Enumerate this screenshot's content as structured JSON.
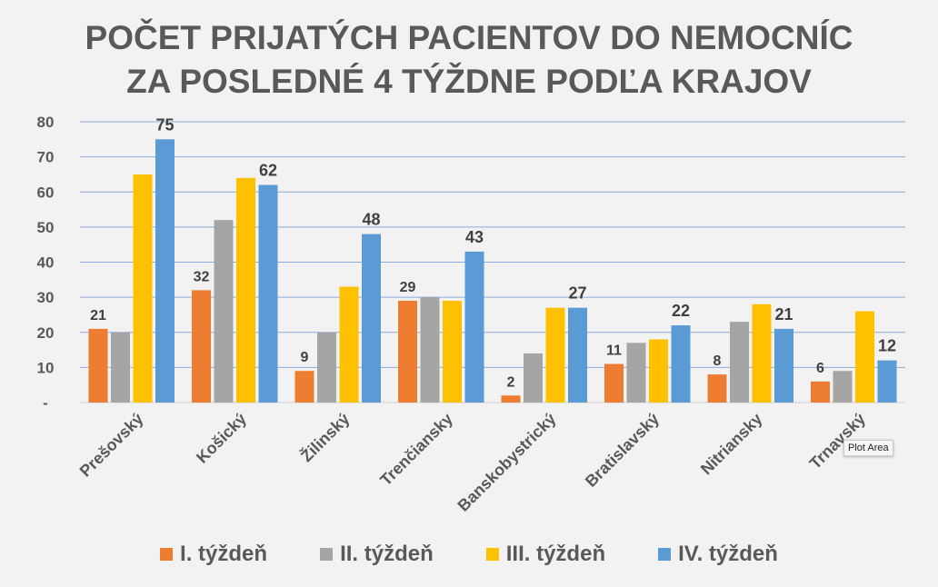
{
  "chart_data": {
    "type": "bar",
    "title_line1": "POČET PRIJATÝCH PACIENTOV DO NEMOCNÍC",
    "title_line2": "ZA POSLEDNÉ 4 TÝŽDNE PODĽA KRAJOV",
    "categories": [
      "Prešovský",
      "Košický",
      "Žilinský",
      "Trenčiansky",
      "Banskobystrický",
      "Bratislavský",
      "Nitriansky",
      "Trnavský"
    ],
    "series": [
      {
        "name": "I. týždeň",
        "color": "#ed7d31",
        "values": [
          21,
          32,
          9,
          29,
          2,
          11,
          8,
          6
        ],
        "labels_shown": true
      },
      {
        "name": "II. týždeň",
        "color": "#a5a5a5",
        "values": [
          20,
          52,
          20,
          30,
          14,
          17,
          23,
          9
        ],
        "labels_shown": false
      },
      {
        "name": "III. týždeň",
        "color": "#ffc000",
        "values": [
          65,
          64,
          33,
          29,
          27,
          18,
          28,
          26
        ],
        "labels_shown": false
      },
      {
        "name": "IV. týždeň",
        "color": "#5b9bd5",
        "values": [
          75,
          62,
          48,
          43,
          27,
          22,
          21,
          12
        ],
        "labels_shown": true
      }
    ],
    "ylim": [
      0,
      80
    ],
    "yticks": [
      "-",
      "10",
      "20",
      "30",
      "40",
      "50",
      "60",
      "70",
      "80"
    ],
    "grid": true,
    "gridline_color": "#8eaadb",
    "legend": "bottom"
  },
  "tooltip": "Plot Area"
}
